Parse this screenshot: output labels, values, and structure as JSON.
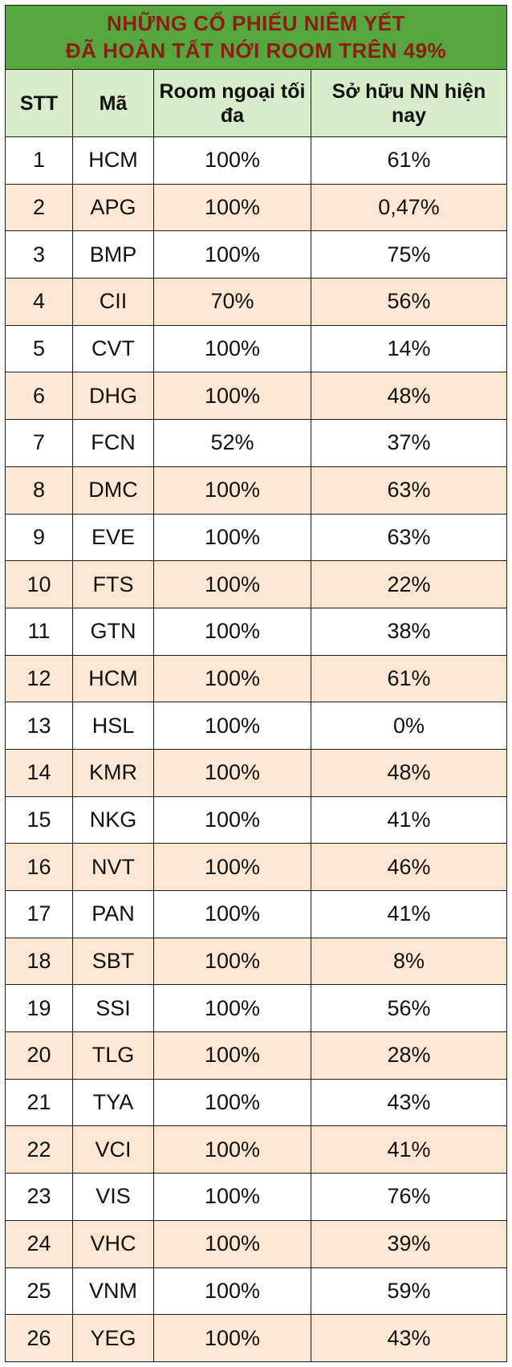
{
  "title": {
    "line1": "NHỮNG CỔ PHIẾU NIÊM YẾT",
    "line2": "ĐÃ HOÀN TẤT NỚI ROOM TRÊN 49%"
  },
  "colors": {
    "banner_green": "#55a63d",
    "title_red": "#8e1d15",
    "header_bg": "#d9ecca",
    "row_alt_bg": "#fde7d2",
    "border": "#1c1c1c"
  },
  "chart_data": {
    "type": "table",
    "title": "NHỮNG CỔ PHIẾU NIÊM YẾT ĐÃ HOÀN TẤT NỚI ROOM TRÊN 49%",
    "columns": [
      "STT",
      "Mã",
      "Room ngoại tối đa",
      "Sở hữu NN hiện nay"
    ],
    "rows": [
      [
        "1",
        "HCM",
        "100%",
        "61%"
      ],
      [
        "2",
        "APG",
        "100%",
        "0,47%"
      ],
      [
        "3",
        "BMP",
        "100%",
        "75%"
      ],
      [
        "4",
        "CII",
        "70%",
        "56%"
      ],
      [
        "5",
        "CVT",
        "100%",
        "14%"
      ],
      [
        "6",
        "DHG",
        "100%",
        "48%"
      ],
      [
        "7",
        "FCN",
        "52%",
        "37%"
      ],
      [
        "8",
        "DMC",
        "100%",
        "63%"
      ],
      [
        "9",
        "EVE",
        "100%",
        "63%"
      ],
      [
        "10",
        "FTS",
        "100%",
        "22%"
      ],
      [
        "11",
        "GTN",
        "100%",
        "38%"
      ],
      [
        "12",
        "HCM",
        "100%",
        "61%"
      ],
      [
        "13",
        "HSL",
        "100%",
        "0%"
      ],
      [
        "14",
        "KMR",
        "100%",
        "48%"
      ],
      [
        "15",
        "NKG",
        "100%",
        "41%"
      ],
      [
        "16",
        "NVT",
        "100%",
        "46%"
      ],
      [
        "17",
        "PAN",
        "100%",
        "41%"
      ],
      [
        "18",
        "SBT",
        "100%",
        "8%"
      ],
      [
        "19",
        "SSI",
        "100%",
        "56%"
      ],
      [
        "20",
        "TLG",
        "100%",
        "28%"
      ],
      [
        "21",
        "TYA",
        "100%",
        "43%"
      ],
      [
        "22",
        "VCI",
        "100%",
        "41%"
      ],
      [
        "23",
        "VIS",
        "100%",
        "76%"
      ],
      [
        "24",
        "VHC",
        "100%",
        "39%"
      ],
      [
        "25",
        "VNM",
        "100%",
        "59%"
      ],
      [
        "26",
        "YEG",
        "100%",
        "43%"
      ]
    ]
  }
}
